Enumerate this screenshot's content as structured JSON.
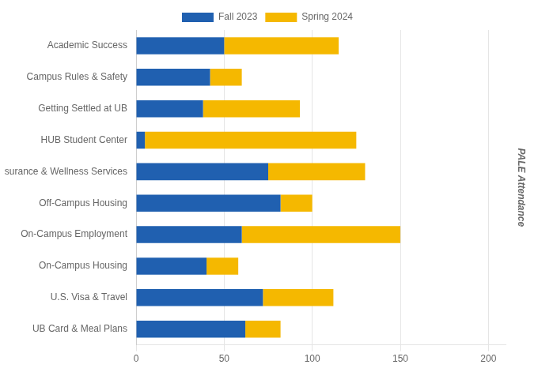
{
  "chart_data": {
    "type": "bar",
    "orientation": "horizontal",
    "stacked": true,
    "categories": [
      "Academic Success",
      "Campus Rules & Safety",
      "Getting Settled at UB",
      "HUB Student Center",
      "Health Insurance & Wellness Services",
      "Off-Campus Housing",
      "On-Campus Employment",
      "On-Campus Housing",
      "U.S. Visa & Travel",
      "UB Card & Meal Plans"
    ],
    "series": [
      {
        "name": "Fall 2023",
        "color": "#2060B0",
        "values": [
          50,
          42,
          38,
          5,
          75,
          82,
          60,
          40,
          72,
          62
        ]
      },
      {
        "name": "Spring 2024",
        "color": "#F5B800",
        "values": [
          65,
          18,
          55,
          120,
          55,
          18,
          90,
          18,
          40,
          20
        ]
      }
    ],
    "xlim": [
      0,
      210
    ],
    "xticks": [
      0,
      50,
      100,
      150,
      200
    ],
    "ylabel": "PALE Attendance",
    "grid": true,
    "legend": "top"
  }
}
